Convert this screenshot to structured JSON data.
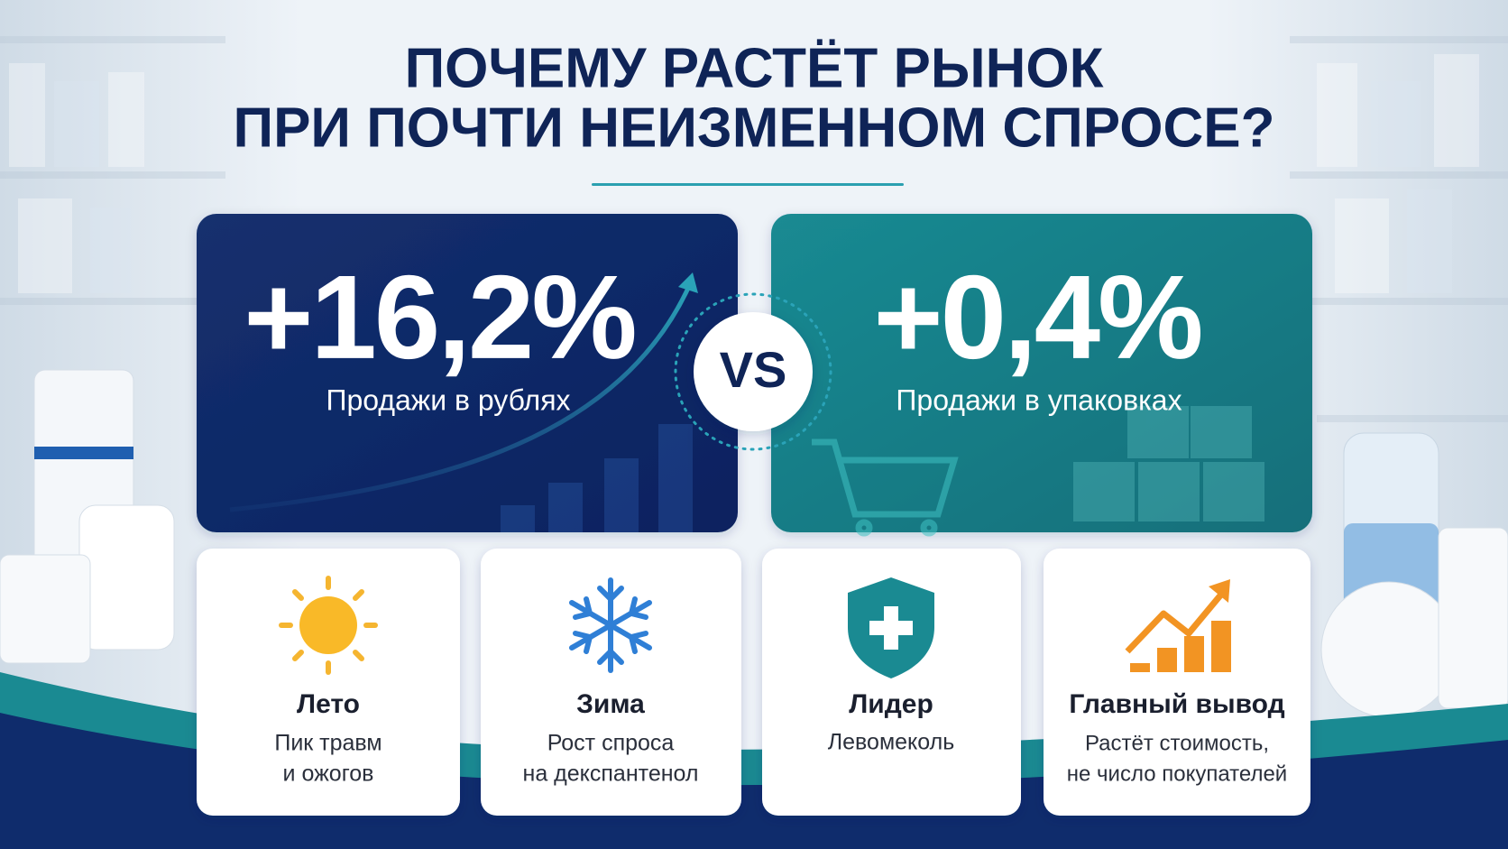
{
  "header": {
    "title_lines": [
      "ПОЧЕМУ РАСТЁТ РЫНОК",
      "ПРИ ПОЧТИ НЕИЗМЕННОМ СПРОСЕ?"
    ]
  },
  "comparison": {
    "left": {
      "value": "+16,2%",
      "label": "Продажи в рублях"
    },
    "versus": "VS",
    "right": {
      "value": "+0,4%",
      "label": "Продажи в упаковках"
    }
  },
  "cards": [
    {
      "title": "Лето",
      "lines": [
        "Пик травм",
        "и ожогов"
      ]
    },
    {
      "title": "Зима",
      "lines": [
        "Рост спроса",
        "на декспантенол"
      ]
    },
    {
      "title": "Лидер",
      "lines": [
        "Левомеколь"
      ]
    },
    {
      "title": "Главный вывод",
      "lines": [
        "Растёт стоимость,",
        "не число покупателей"
      ]
    }
  ]
}
